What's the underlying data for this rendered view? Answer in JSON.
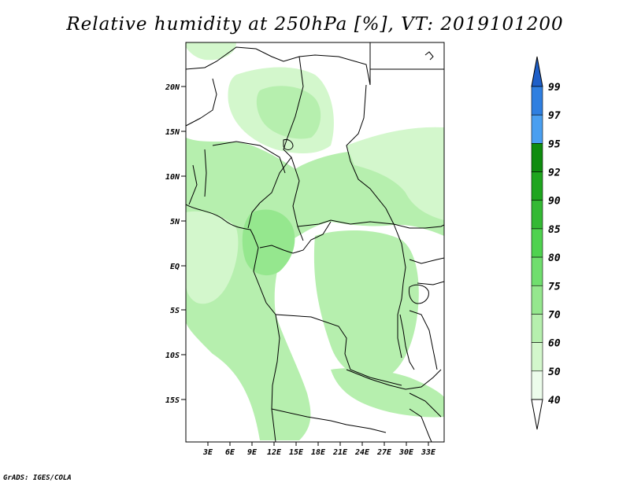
{
  "title": "Relative humidity at 250hPa [%], VT: 2019101200",
  "credit": "GrADS: IGES/COLA",
  "map": {
    "lon_range": [
      0,
      35.5
    ],
    "lat_range": [
      -20,
      25
    ],
    "lon_ticks": [
      "3E",
      "6E",
      "9E",
      "12E",
      "15E",
      "18E",
      "21E",
      "24E",
      "27E",
      "30E",
      "33E"
    ],
    "lat_ticks": [
      "20N",
      "15N",
      "10N",
      "5N",
      "EQ",
      "5S",
      "10S",
      "15S"
    ]
  },
  "colorbar": {
    "levels": [
      "99",
      "97",
      "95",
      "92",
      "90",
      "85",
      "80",
      "75",
      "70",
      "60",
      "50",
      "40"
    ],
    "colors": [
      "#1e5fc8",
      "#2f7fe0",
      "#4a9ff0",
      "#0e8c0e",
      "#1ea51e",
      "#34b934",
      "#4fd24f",
      "#70de6e",
      "#95e78e",
      "#b6efae",
      "#d3f7cc",
      "#ecfceb"
    ]
  }
}
